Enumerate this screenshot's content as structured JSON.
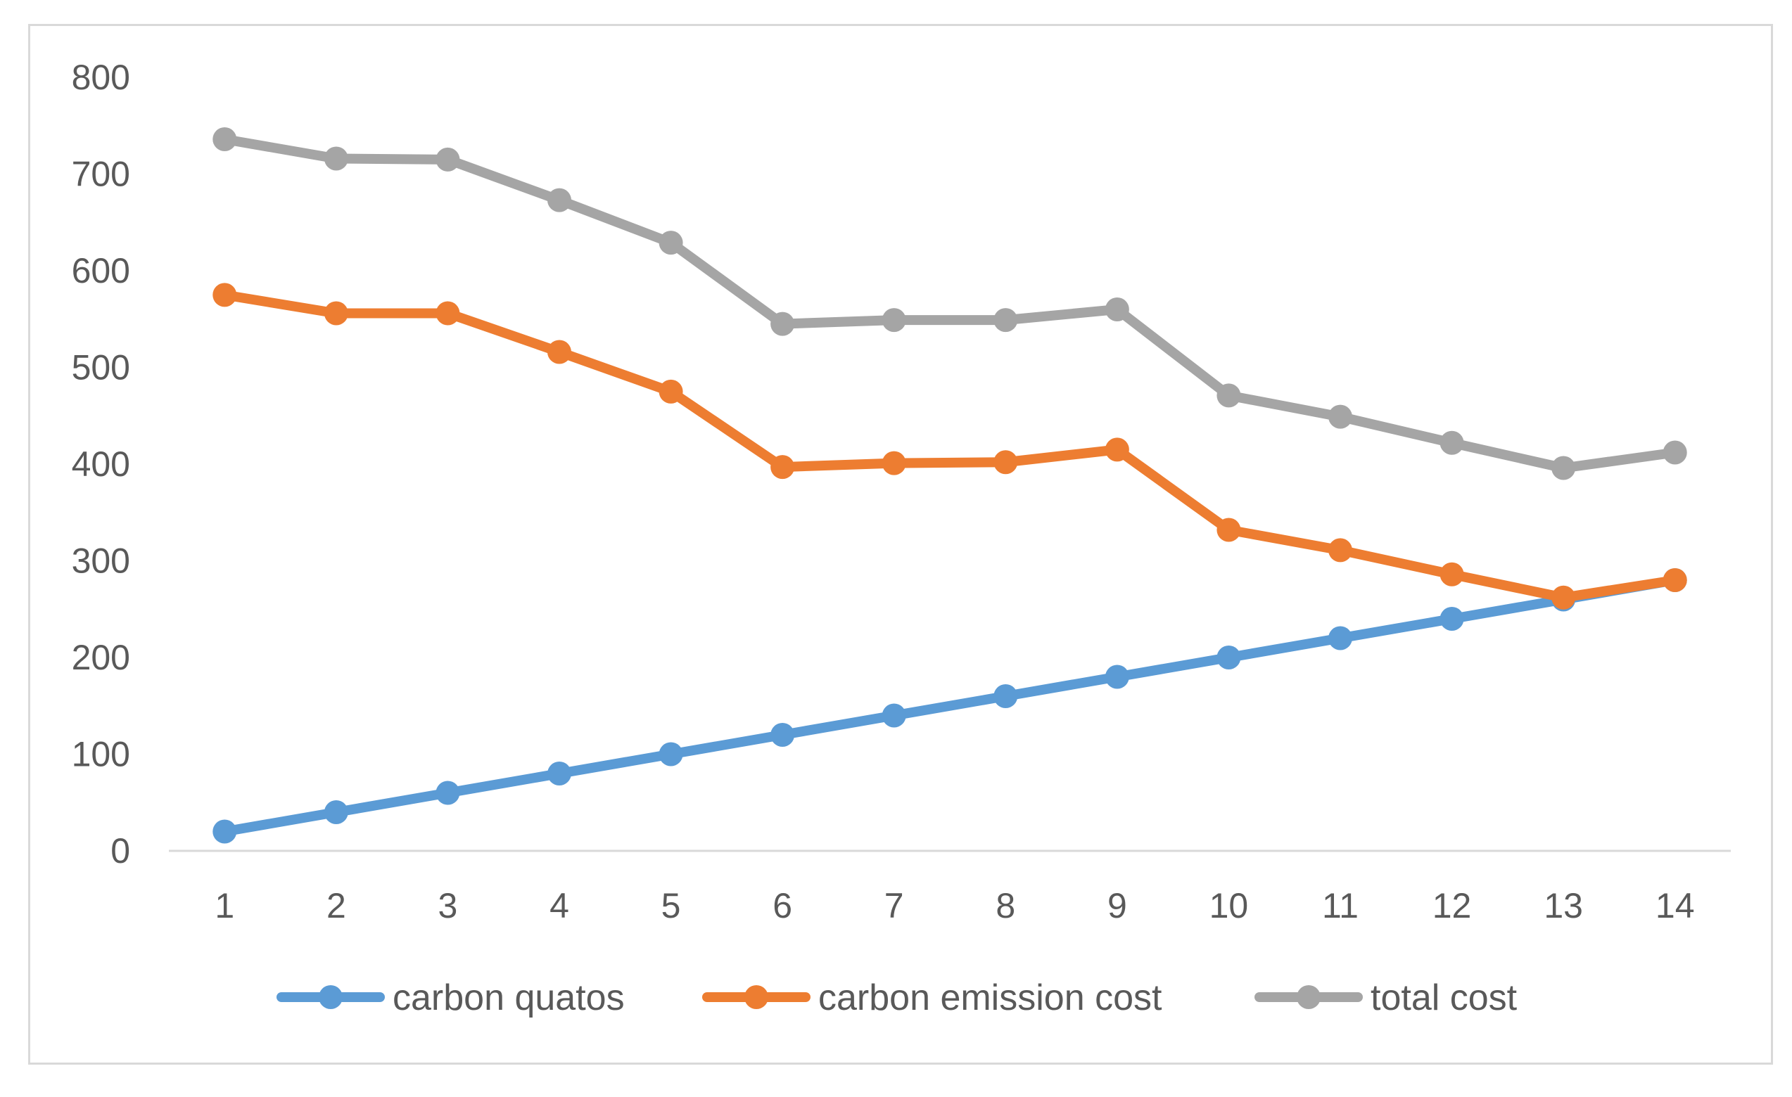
{
  "chart_data": {
    "type": "line",
    "title": "",
    "xlabel": "",
    "ylabel": "",
    "categories": [
      "1",
      "2",
      "3",
      "4",
      "5",
      "6",
      "7",
      "8",
      "9",
      "10",
      "11",
      "12",
      "13",
      "14"
    ],
    "ylim": [
      0,
      800
    ],
    "yticks": [
      "0",
      "100",
      "200",
      "300",
      "400",
      "500",
      "600",
      "700",
      "800"
    ],
    "grid": false,
    "legend_position": "bottom",
    "series": [
      {
        "name": "carbon quatos",
        "color": "#5b9bd5",
        "values": [
          20,
          40,
          60,
          80,
          100,
          120,
          140,
          160,
          180,
          200,
          220,
          240,
          260,
          280
        ]
      },
      {
        "name": "carbon emission cost",
        "color": "#ed7d31",
        "values": [
          575,
          556,
          556,
          516,
          475,
          397,
          401,
          402,
          415,
          332,
          311,
          286,
          262,
          280
        ]
      },
      {
        "name": "total cost",
        "color": "#a5a5a5",
        "values": [
          736,
          716,
          715,
          673,
          629,
          545,
          549,
          549,
          560,
          471,
          449,
          422,
          396,
          412
        ]
      }
    ]
  }
}
